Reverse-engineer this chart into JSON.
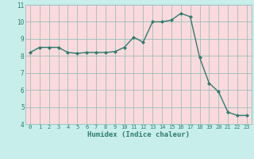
{
  "x": [
    0,
    1,
    2,
    3,
    4,
    5,
    6,
    7,
    8,
    9,
    10,
    11,
    12,
    13,
    14,
    15,
    16,
    17,
    18,
    19,
    20,
    21,
    22,
    23
  ],
  "y": [
    8.2,
    8.5,
    8.5,
    8.5,
    8.2,
    8.15,
    8.2,
    8.2,
    8.2,
    8.25,
    8.5,
    9.1,
    8.8,
    10.0,
    10.0,
    10.1,
    10.5,
    10.3,
    7.9,
    6.4,
    5.9,
    4.7,
    4.5,
    4.5
  ],
  "xlabel": "Humidex (Indice chaleur)",
  "ylim": [
    4,
    11
  ],
  "xlim": [
    -0.5,
    23.5
  ],
  "yticks": [
    4,
    5,
    6,
    7,
    8,
    9,
    10,
    11
  ],
  "xticks": [
    0,
    1,
    2,
    3,
    4,
    5,
    6,
    7,
    8,
    9,
    10,
    11,
    12,
    13,
    14,
    15,
    16,
    17,
    18,
    19,
    20,
    21,
    22,
    23
  ],
  "line_color": "#2d7d6e",
  "fig_bg_color": "#c8eeeb",
  "plot_bg_color": "#fadadd",
  "grid_color": "#9bbfba",
  "tick_color": "#2d7d6e",
  "label_color": "#2d7d6e",
  "marker": "D",
  "markersize": 2.0,
  "linewidth": 1.0
}
